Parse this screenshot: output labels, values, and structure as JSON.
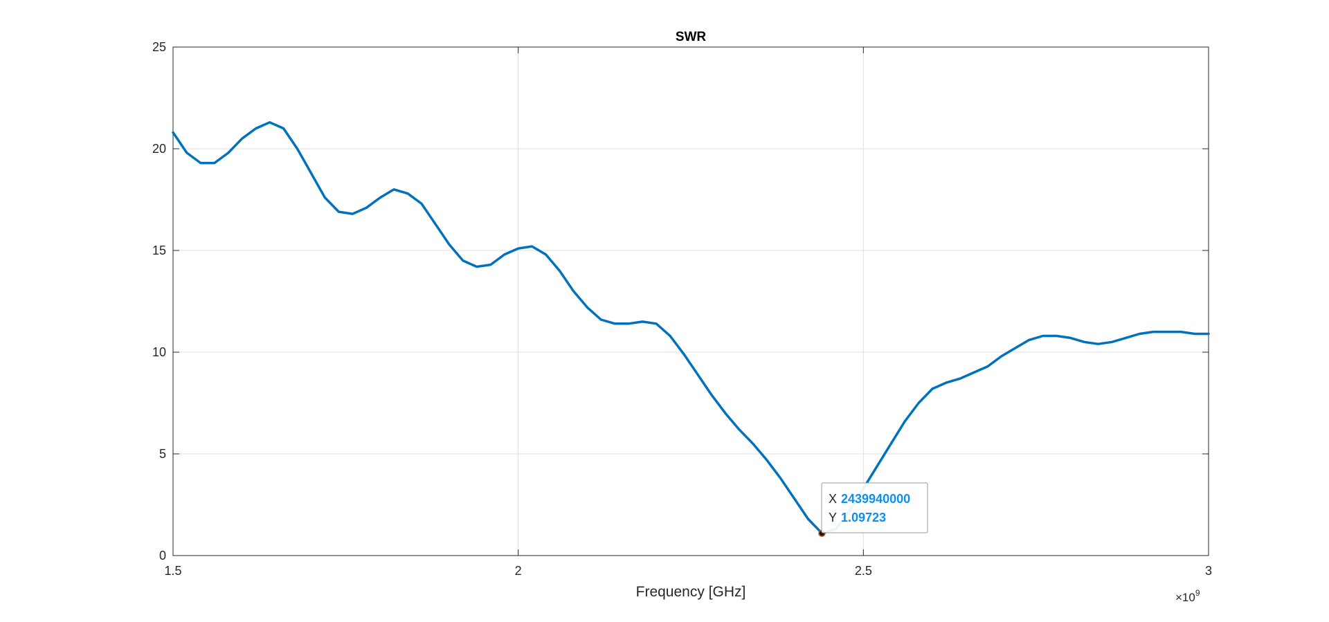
{
  "chart_data": {
    "type": "line",
    "title": "SWR",
    "xlabel": "Frequency [GHz]",
    "ylabel": "",
    "x_exponent_label": "×10",
    "x_exponent": "9",
    "xlim": [
      1500000000.0,
      3000000000.0
    ],
    "ylim": [
      0,
      25
    ],
    "grid": true,
    "x_ticks": [
      1500000000.0,
      2000000000.0,
      2500000000.0,
      3000000000.0
    ],
    "x_tick_labels": [
      "1.5",
      "2",
      "2.5",
      "3"
    ],
    "y_ticks": [
      0,
      5,
      10,
      15,
      20,
      25
    ],
    "y_tick_labels": [
      "0",
      "5",
      "10",
      "15",
      "20",
      "25"
    ],
    "series": [
      {
        "name": "SWR",
        "color": "#0072BD",
        "x": [
          1500000000.0,
          1520000000.0,
          1540000000.0,
          1560000000.0,
          1580000000.0,
          1600000000.0,
          1620000000.0,
          1640000000.0,
          1660000000.0,
          1680000000.0,
          1700000000.0,
          1720000000.0,
          1740000000.0,
          1760000000.0,
          1780000000.0,
          1800000000.0,
          1820000000.0,
          1840000000.0,
          1860000000.0,
          1880000000.0,
          1900000000.0,
          1920000000.0,
          1940000000.0,
          1960000000.0,
          1980000000.0,
          2000000000.0,
          2020000000.0,
          2040000000.0,
          2060000000.0,
          2080000000.0,
          2100000000.0,
          2120000000.0,
          2140000000.0,
          2160000000.0,
          2180000000.0,
          2200000000.0,
          2220000000.0,
          2240000000.0,
          2260000000.0,
          2280000000.0,
          2300000000.0,
          2320000000.0,
          2340000000.0,
          2360000000.0,
          2380000000.0,
          2400000000.0,
          2420000000.0,
          2439940000.0,
          2460000000.0,
          2480000000.0,
          2500000000.0,
          2520000000.0,
          2540000000.0,
          2560000000.0,
          2580000000.0,
          2600000000.0,
          2620000000.0,
          2640000000.0,
          2660000000.0,
          2680000000.0,
          2700000000.0,
          2720000000.0,
          2740000000.0,
          2760000000.0,
          2780000000.0,
          2800000000.0,
          2820000000.0,
          2840000000.0,
          2860000000.0,
          2880000000.0,
          2900000000.0,
          2920000000.0,
          2940000000.0,
          2960000000.0,
          2980000000.0,
          3000000000.0
        ],
        "values": [
          20.8,
          19.8,
          19.3,
          19.3,
          19.8,
          20.5,
          21.0,
          21.3,
          21.0,
          20.0,
          18.8,
          17.6,
          16.9,
          16.8,
          17.1,
          17.6,
          18.0,
          17.8,
          17.3,
          16.3,
          15.3,
          14.5,
          14.2,
          14.3,
          14.8,
          15.1,
          15.2,
          14.8,
          14.0,
          13.0,
          12.2,
          11.6,
          11.4,
          11.4,
          11.5,
          11.4,
          10.8,
          9.9,
          8.9,
          7.9,
          7.0,
          6.2,
          5.5,
          4.7,
          3.8,
          2.8,
          1.8,
          1.1,
          1.3,
          2.2,
          3.3,
          4.4,
          5.5,
          6.6,
          7.5,
          8.2,
          8.5,
          8.7,
          9.0,
          9.3,
          9.8,
          10.2,
          10.6,
          10.8,
          10.8,
          10.7,
          10.5,
          10.4,
          10.5,
          10.7,
          10.9,
          11.0,
          11.0,
          11.0,
          10.9,
          10.9
        ]
      }
    ],
    "datatip": {
      "x_label": "X",
      "y_label": "Y",
      "x_value": "2439940000",
      "y_value": "1.09723",
      "x": 2439940000,
      "y": 1.09723
    }
  }
}
